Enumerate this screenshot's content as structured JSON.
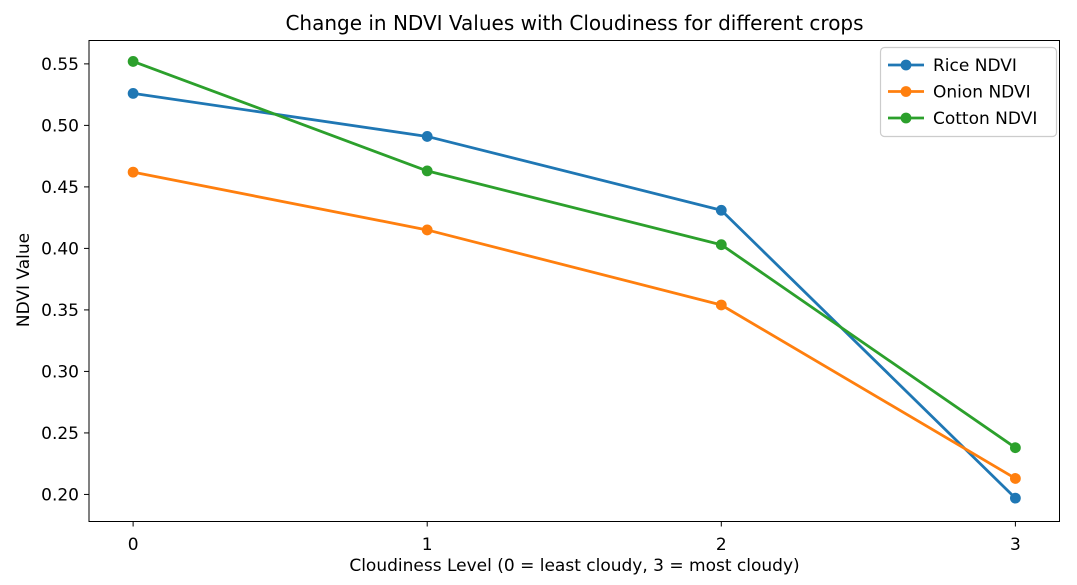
{
  "chart_data": {
    "type": "line",
    "title": "Change in NDVI Values with Cloudiness for different crops",
    "xlabel": "Cloudiness Level (0 = least cloudy, 3 = most cloudy)",
    "ylabel": "NDVI Value",
    "x": [
      0,
      1,
      2,
      3
    ],
    "xtick_labels": [
      "0",
      "1",
      "2",
      "3"
    ],
    "ytick_values": [
      0.2,
      0.25,
      0.3,
      0.35,
      0.4,
      0.45,
      0.5,
      0.55
    ],
    "ytick_labels": [
      "0.20",
      "0.25",
      "0.30",
      "0.35",
      "0.40",
      "0.45",
      "0.50",
      "0.55"
    ],
    "xlim": [
      -0.15,
      3.15
    ],
    "ylim": [
      0.178,
      0.569
    ],
    "grid": false,
    "legend": {
      "position": "upper right",
      "entries": [
        "Rice NDVI",
        "Onion NDVI",
        "Cotton NDVI"
      ]
    },
    "series": [
      {
        "name": "Rice NDVI",
        "color": "#1f77b4",
        "marker": "circle",
        "values": [
          0.526,
          0.491,
          0.431,
          0.197
        ]
      },
      {
        "name": "Onion NDVI",
        "color": "#ff7f0e",
        "marker": "circle",
        "values": [
          0.462,
          0.415,
          0.354,
          0.213
        ]
      },
      {
        "name": "Cotton NDVI",
        "color": "#2ca02c",
        "marker": "circle",
        "values": [
          0.552,
          0.463,
          0.403,
          0.238
        ]
      }
    ],
    "colors": {
      "axis": "#000000",
      "legend_border": "#cccccc",
      "background": "#ffffff"
    }
  }
}
